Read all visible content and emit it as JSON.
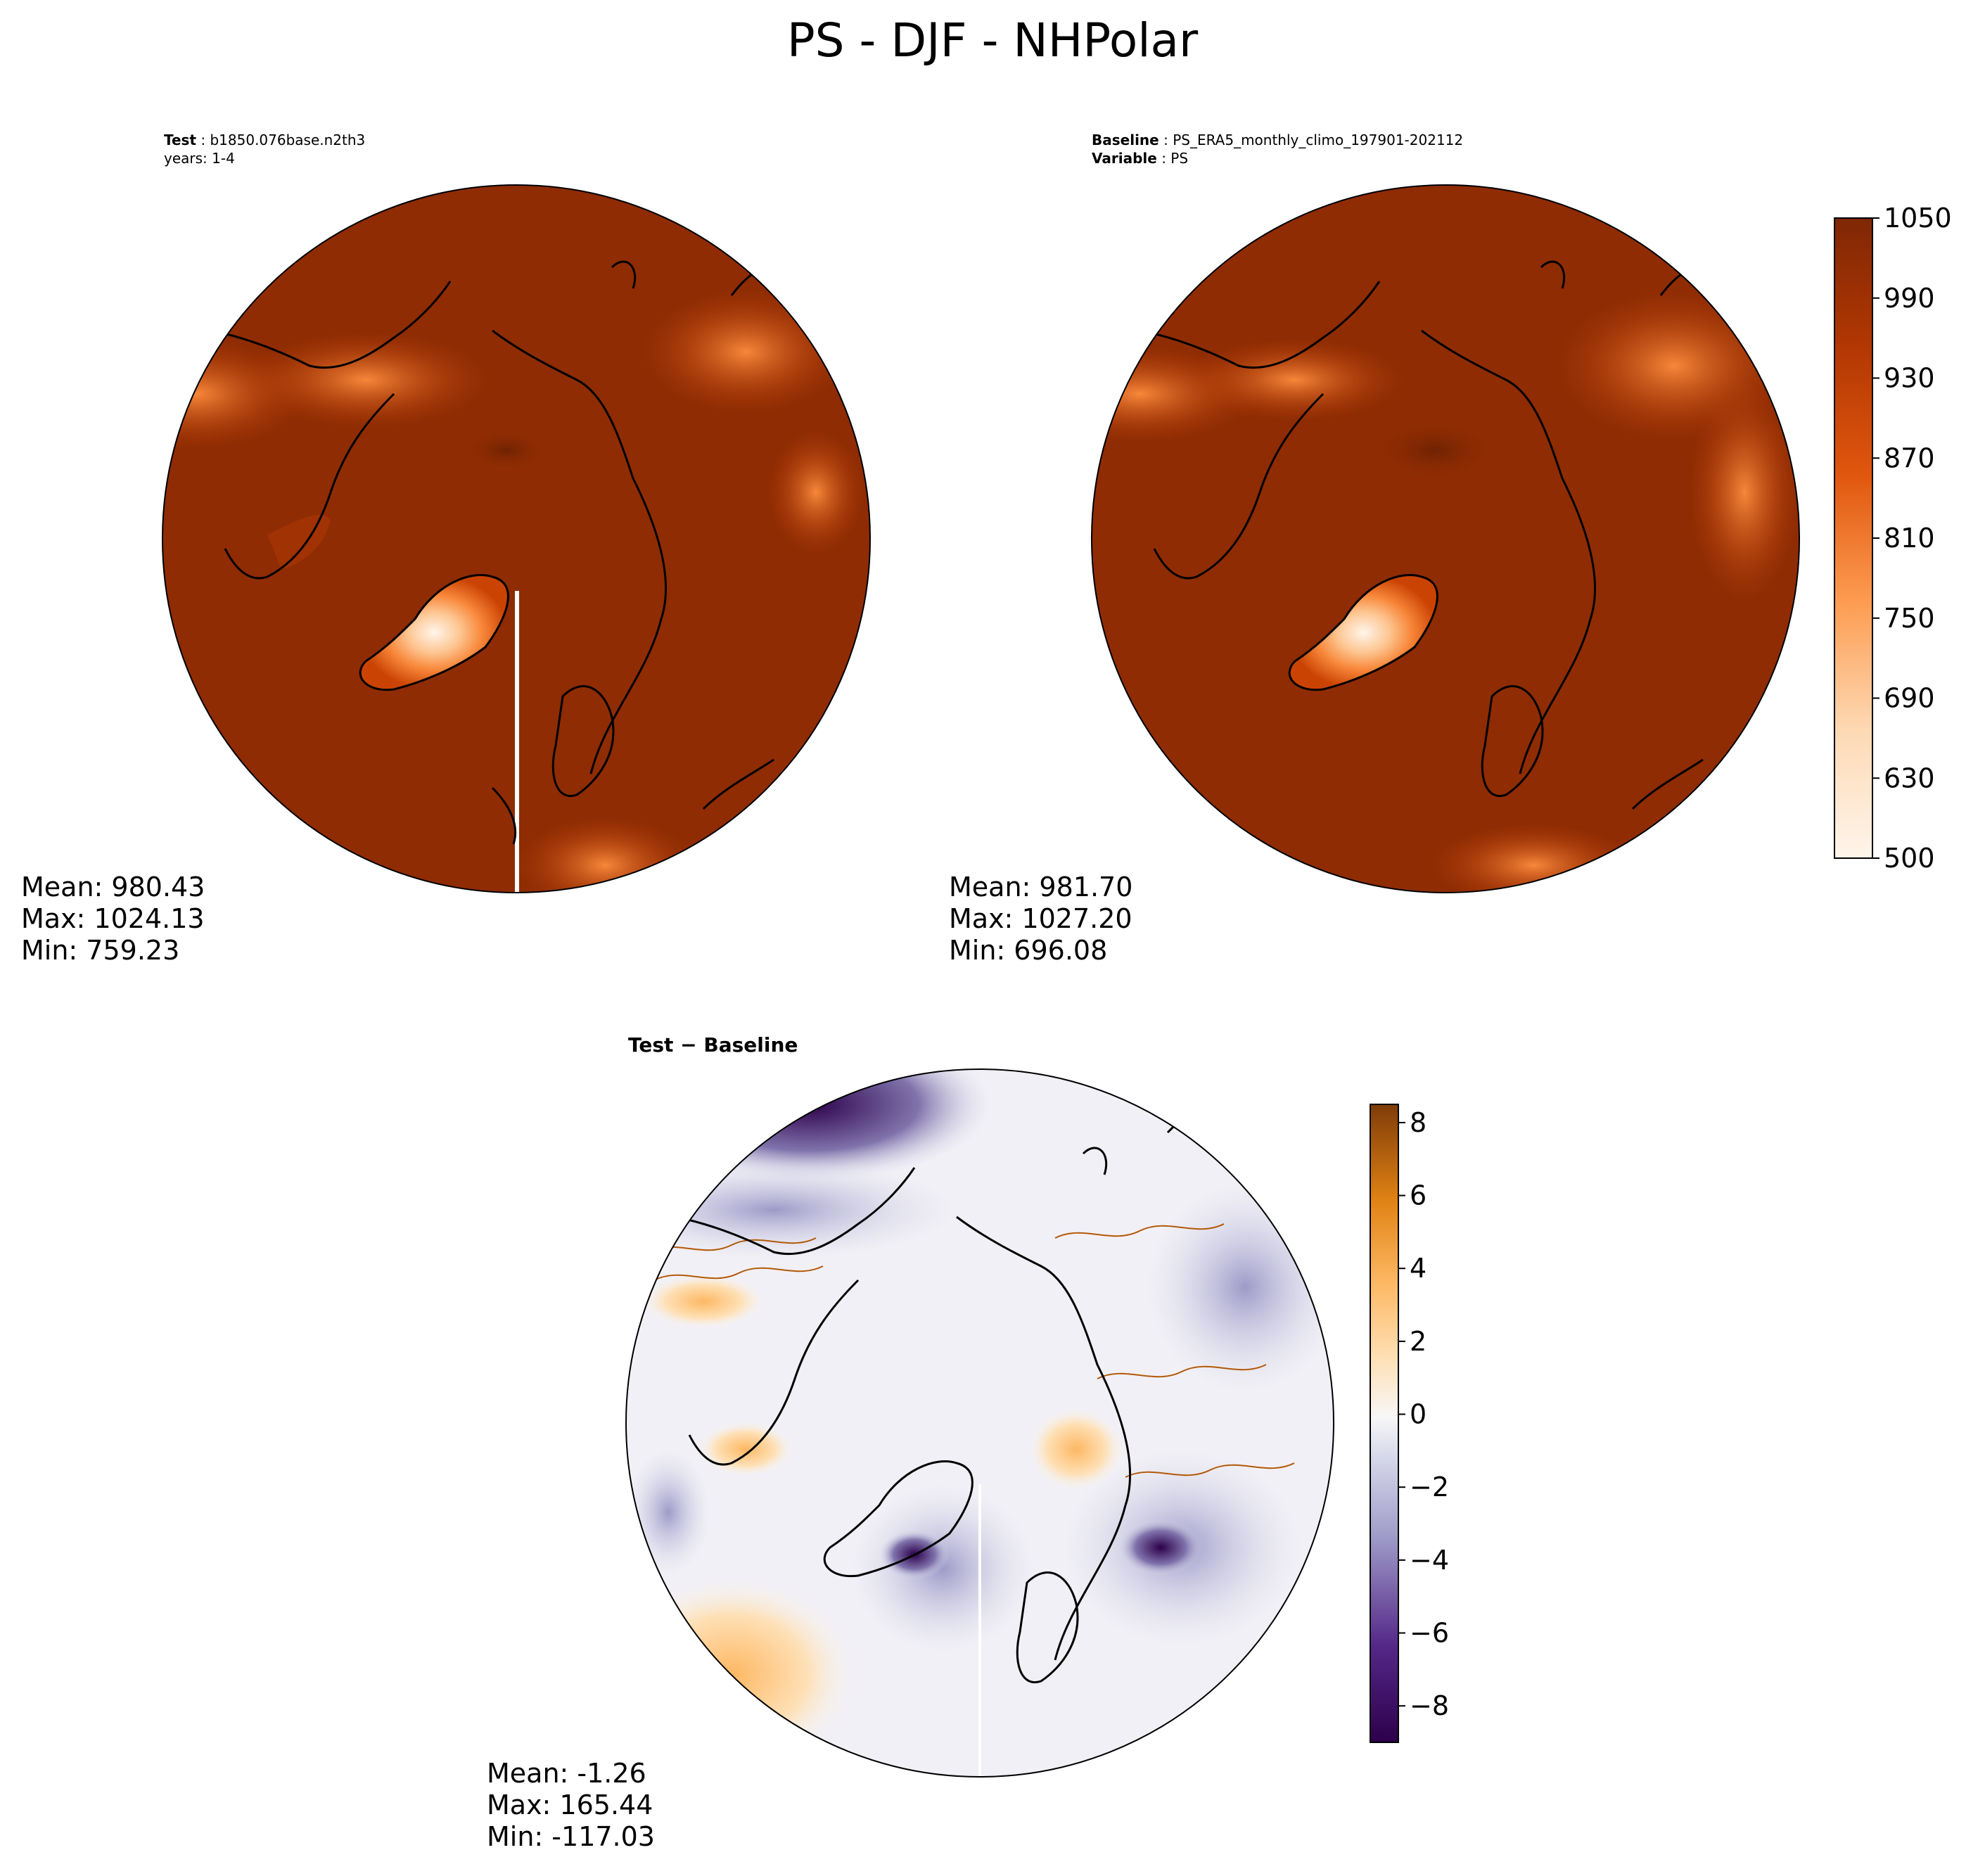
{
  "suptitle": "PS - DJF - NHPolar",
  "colors": {
    "ps_levels": [
      "#fff5eb",
      "#fee6ce",
      "#fdd9b4",
      "#fdc692",
      "#fdb272",
      "#fd9c51",
      "#f8873a",
      "#f06f1f",
      "#e0560e",
      "#cb4303",
      "#b23703",
      "#a03203",
      "#8f2c03",
      "#852a03",
      "#7f2704",
      "#7f2704"
    ],
    "diff_low": "#2d004b",
    "diff_mid": "#f7f7f7",
    "diff_high": "#7f3b08",
    "land_outline": "#000000",
    "diff_contour": "#b35806"
  },
  "chart_data": [
    {
      "type": "heatmap",
      "projection": "north-polar-stereographic",
      "panel": "test",
      "header": [
        {
          "label": "Test",
          "text": "b1850.076base.n2th3"
        },
        {
          "label": "",
          "text": "years: 1-4"
        }
      ],
      "stats": [
        "Mean: 980.43",
        "Max: 1024.13",
        "Min: 759.23"
      ],
      "mean": 980.43,
      "max": 1024.13,
      "min": 759.23
    },
    {
      "type": "heatmap",
      "projection": "north-polar-stereographic",
      "panel": "baseline",
      "header": [
        {
          "label": "Baseline",
          "text": "PS_ERA5_monthly_climo_197901-202112"
        },
        {
          "label": "Variable",
          "text": "PS"
        }
      ],
      "stats": [
        "Mean: 981.70",
        "Max: 1027.20",
        "Min: 696.08"
      ],
      "mean": 981.7,
      "max": 1027.2,
      "min": 696.08,
      "colorbar": {
        "range": [
          500,
          1050
        ],
        "ticks": [
          "1050",
          "990",
          "930",
          "870",
          "810",
          "750",
          "690",
          "630",
          "500"
        ]
      }
    },
    {
      "type": "heatmap",
      "projection": "north-polar-stereographic",
      "panel": "difference",
      "header": [
        {
          "label": "Test − Baseline",
          "text": ""
        }
      ],
      "stats": [
        "Mean: -1.26",
        "Max: 165.44",
        "Min: -117.03"
      ],
      "mean": -1.26,
      "max": 165.44,
      "min": -117.03,
      "colorbar": {
        "range": [
          -9,
          8.5
        ],
        "ticks": [
          "8",
          "6",
          "4",
          "2",
          "0",
          "−2",
          "−4",
          "−6",
          "−8"
        ]
      }
    }
  ]
}
